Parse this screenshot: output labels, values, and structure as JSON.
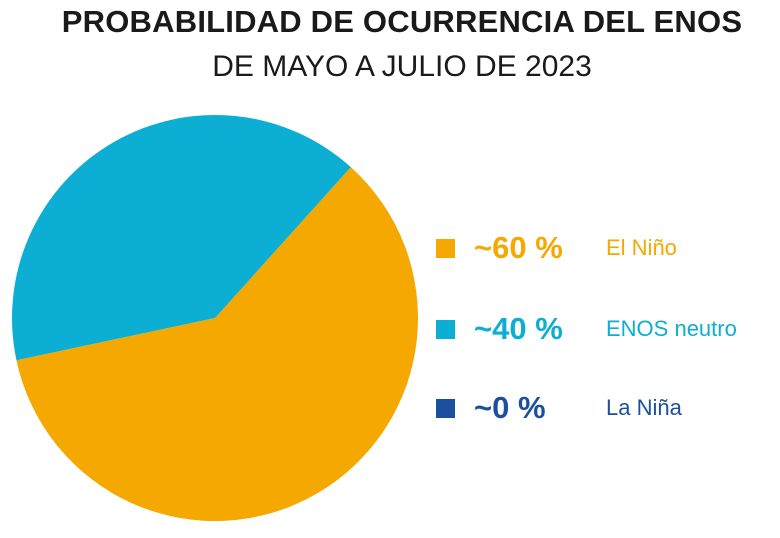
{
  "chart_data": {
    "type": "pie",
    "title": "PROBABILIDAD DE OCURRENCIA DEL ENOS",
    "subtitle": "DE MAYO A JULIO DE 2023",
    "slices": [
      {
        "label": "El Niño",
        "display": "~60 %",
        "value": 60,
        "color": "#F5A800"
      },
      {
        "label": "ENOS neutro",
        "display": "~40 %",
        "value": 40,
        "color": "#0DAED3"
      },
      {
        "label": "La Niña",
        "display": "~0 %",
        "value": 0,
        "color": "#1B4FA0"
      }
    ],
    "legend": "right"
  }
}
